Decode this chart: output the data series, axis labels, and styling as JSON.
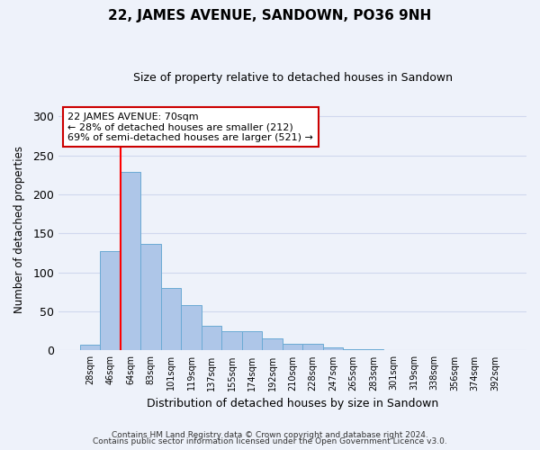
{
  "title": "22, JAMES AVENUE, SANDOWN, PO36 9NH",
  "subtitle": "Size of property relative to detached houses in Sandown",
  "xlabel": "Distribution of detached houses by size in Sandown",
  "ylabel": "Number of detached properties",
  "bar_labels": [
    "28sqm",
    "46sqm",
    "64sqm",
    "83sqm",
    "101sqm",
    "119sqm",
    "137sqm",
    "155sqm",
    "174sqm",
    "192sqm",
    "210sqm",
    "228sqm",
    "247sqm",
    "265sqm",
    "283sqm",
    "301sqm",
    "319sqm",
    "338sqm",
    "356sqm",
    "374sqm",
    "392sqm"
  ],
  "bar_values": [
    7,
    127,
    229,
    137,
    80,
    58,
    32,
    25,
    25,
    15,
    8,
    9,
    4,
    2,
    2,
    1,
    0,
    1,
    0,
    0,
    1
  ],
  "bar_color": "#aec6e8",
  "bar_edge_color": "#6aaad4",
  "vline_color": "red",
  "vline_bar_index": 2,
  "annotation_line1": "22 JAMES AVENUE: 70sqm",
  "annotation_line2": "← 28% of detached houses are smaller (212)",
  "annotation_line3": "69% of semi-detached houses are larger (521) →",
  "annotation_box_color": "white",
  "annotation_box_edge": "#cc0000",
  "ylim": [
    0,
    310
  ],
  "yticks": [
    0,
    50,
    100,
    150,
    200,
    250,
    300
  ],
  "footer_line1": "Contains HM Land Registry data © Crown copyright and database right 2024.",
  "footer_line2": "Contains public sector information licensed under the Open Government Licence v3.0.",
  "background_color": "#eef2fa",
  "grid_color": "#d0d8ee"
}
